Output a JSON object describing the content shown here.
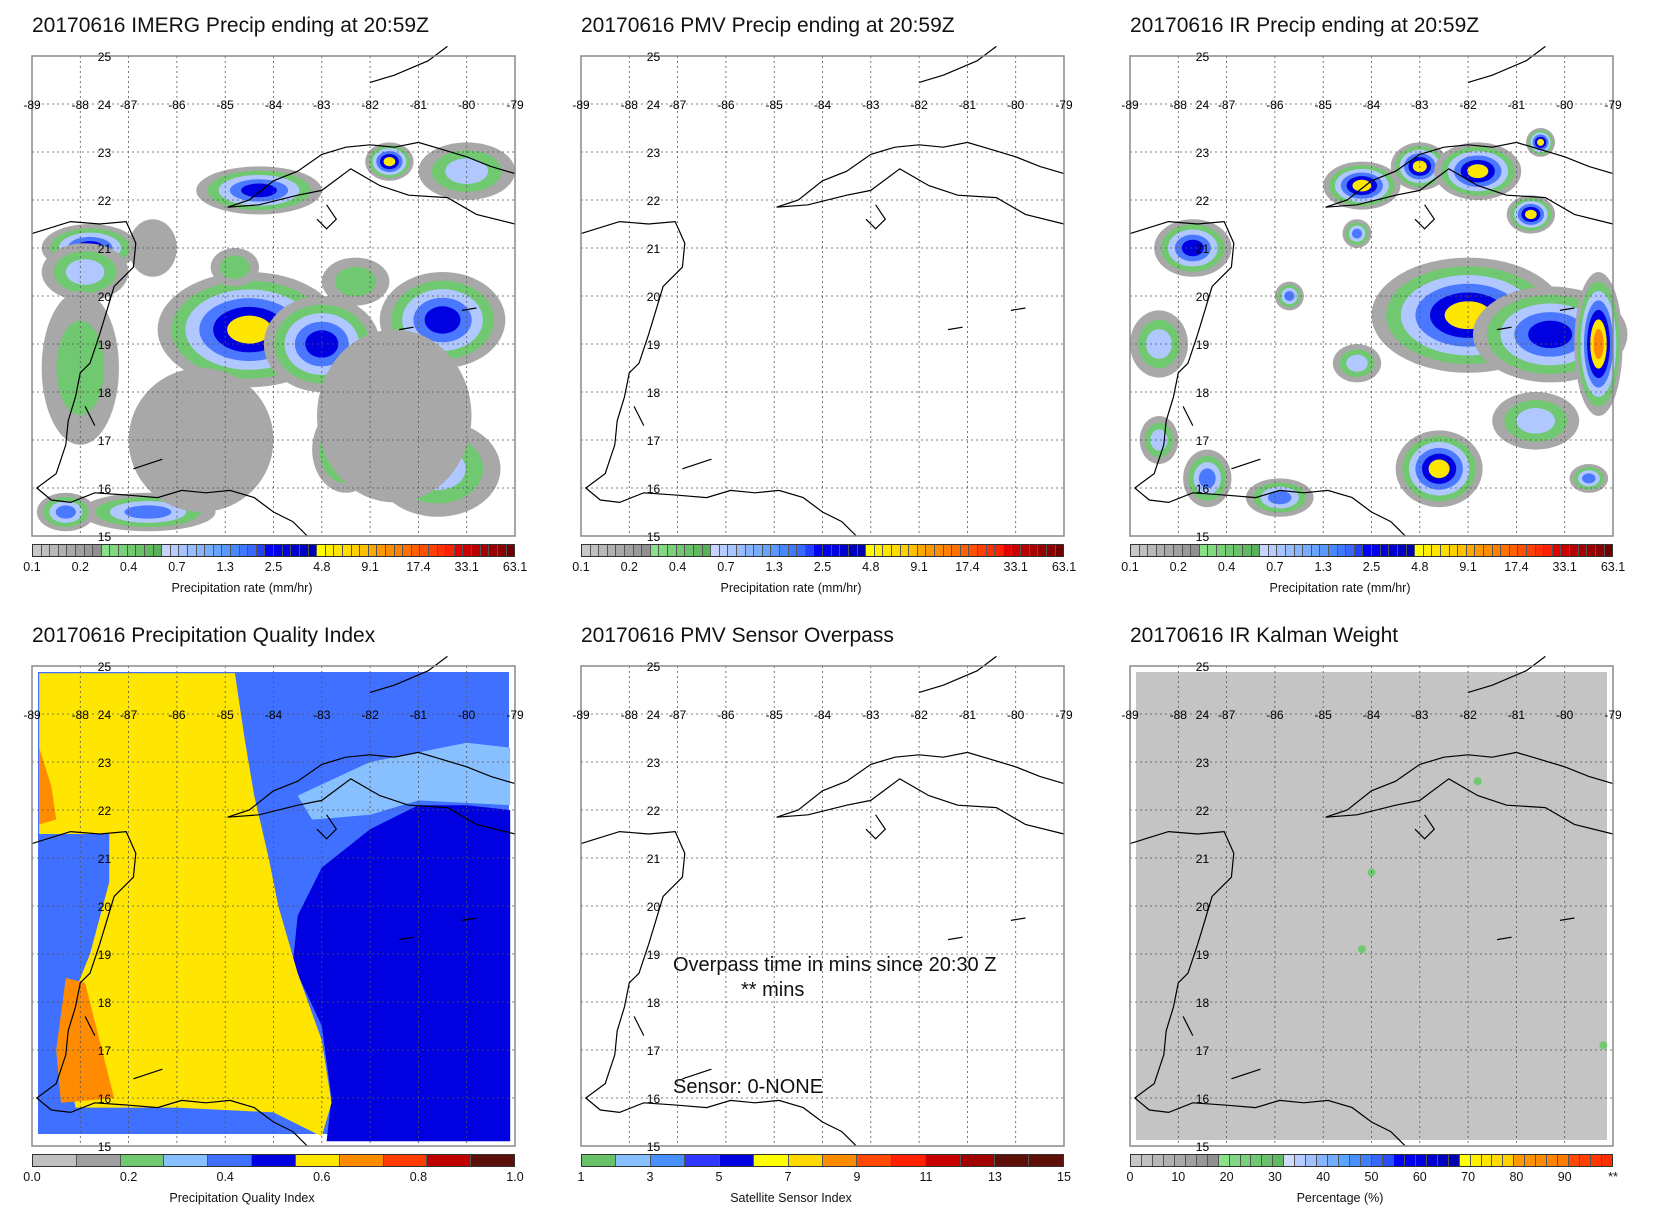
{
  "panels": [
    {
      "id": "imerg",
      "title": "20170616 IMERG Precip ending at 20:59Z",
      "colorbar": "precip",
      "fill": "imerg"
    },
    {
      "id": "pmv",
      "title": "20170616 PMV Precip ending at 20:59Z",
      "colorbar": "precip",
      "fill": "none"
    },
    {
      "id": "ir",
      "title": "20170616 IR Precip ending at 20:59Z",
      "colorbar": "precip",
      "fill": "ir"
    },
    {
      "id": "pqi",
      "title": "20170616 Precipitation Quality Index",
      "colorbar": "pqi",
      "fill": "pqi"
    },
    {
      "id": "sensor",
      "title": "20170616 PMV Sensor Overpass",
      "colorbar": "sensor",
      "fill": "none"
    },
    {
      "id": "kalman",
      "title": "20170616 IR Kalman Weight",
      "colorbar": "kalman",
      "fill": "kalman"
    }
  ],
  "map": {
    "lon_labels": [
      "-89",
      "-88",
      "-87",
      "-86",
      "-85",
      "-84",
      "-83",
      "-82",
      "-81",
      "-80",
      "-79"
    ],
    "lat_labels": [
      "15",
      "16",
      "17",
      "18",
      "19",
      "20",
      "21",
      "22",
      "23",
      "24",
      "25"
    ]
  },
  "sensor_overlay": {
    "line1": "Overpass time in mins since 20:30 Z",
    "line2": "** mins",
    "line3": "Sensor:   0-NONE"
  },
  "colorbars": {
    "precip": {
      "label": "Precipitation rate (mm/hr)",
      "ticks": [
        "0.1",
        "0.2",
        "0.4",
        "0.7",
        "1.3",
        "2.5",
        "4.8",
        "9.1",
        "17.4",
        "33.1",
        "63.1"
      ],
      "colors": [
        "#c8c8c8",
        "#c0c0c0",
        "#b8b8b8",
        "#b0b0b0",
        "#a8a8a8",
        "#a0a0a0",
        "#989898",
        "#909090",
        "#88e088",
        "#80d880",
        "#78d078",
        "#70c870",
        "#68c068",
        "#60b860",
        "#58b058",
        "#c8d4ff",
        "#b8ccff",
        "#a8c4ff",
        "#98bcff",
        "#88b4ff",
        "#78acff",
        "#68a4ff",
        "#5898ff",
        "#4888ff",
        "#4078ff",
        "#3868ff",
        "#2040ff",
        "#0000ff",
        "#0000e8",
        "#0000e0",
        "#0000d0",
        "#0000c0",
        "#0000b0",
        "#ffff00",
        "#fff000",
        "#ffe600",
        "#ffdc00",
        "#ffd000",
        "#ffc000",
        "#ffa800",
        "#ff9800",
        "#ff8c00",
        "#ff8000",
        "#ff7000",
        "#ff6000",
        "#ff5000",
        "#ff4000",
        "#ff3000",
        "#ff2000",
        "#e00000",
        "#c80000",
        "#b80000",
        "#a80000",
        "#980000",
        "#880000",
        "#700000"
      ]
    },
    "pqi": {
      "label": "Precipitation Quality Index",
      "ticks": [
        "0.0",
        "",
        "0.2",
        "",
        "0.4",
        "",
        "0.6",
        "",
        "0.8",
        "",
        "1.0"
      ],
      "colors": [
        "#c0c0c0",
        "#a0a0a0",
        "#70c870",
        "#88c0ff",
        "#4070ff",
        "#0000e0",
        "#ffe600",
        "#ff8c00",
        "#ff3c00",
        "#c00000",
        "#5a0f08"
      ]
    },
    "sensor": {
      "label": "Satellite Sensor Index",
      "ticks": [
        "1",
        "",
        "3",
        "",
        "5",
        "",
        "7",
        "",
        "9",
        "",
        "11",
        "",
        "13",
        "",
        "15"
      ],
      "colors": [
        "#68c068",
        "#88c0ff",
        "#4890ff",
        "#3038ff",
        "#0000e0",
        "#ffff00",
        "#ffd800",
        "#ff8c00",
        "#ff4800",
        "#ff2000",
        "#c80000",
        "#a00000",
        "#5e1008",
        "#5e1008"
      ]
    },
    "kalman": {
      "label": "Percentage (%)",
      "ticks": [
        "0",
        "10",
        "20",
        "30",
        "40",
        "50",
        "60",
        "70",
        "80",
        "90",
        "**"
      ],
      "colors": [
        "#c8c8c8",
        "#c0c0c0",
        "#b8b8b8",
        "#b0b0b0",
        "#a8a8a8",
        "#a0a0a0",
        "#989898",
        "#909090",
        "#88e088",
        "#80d880",
        "#78d078",
        "#70c870",
        "#68c068",
        "#60b860",
        "#d0dcff",
        "#b8ccff",
        "#a0c0ff",
        "#88b4ff",
        "#70acff",
        "#58a4ff",
        "#4890ff",
        "#4080ff",
        "#3868ff",
        "#2850ff",
        "#0000ff",
        "#0000f0",
        "#0000e0",
        "#0000d0",
        "#0000c0",
        "#0000b0",
        "#ffff00",
        "#fff000",
        "#ffe600",
        "#ffdc00",
        "#ffd000",
        "#ff9800",
        "#ff9000",
        "#ff8c00",
        "#ff8400",
        "#ff7c00",
        "#ff4800",
        "#ff4000",
        "#ff3800",
        "#ff3000"
      ]
    }
  }
}
